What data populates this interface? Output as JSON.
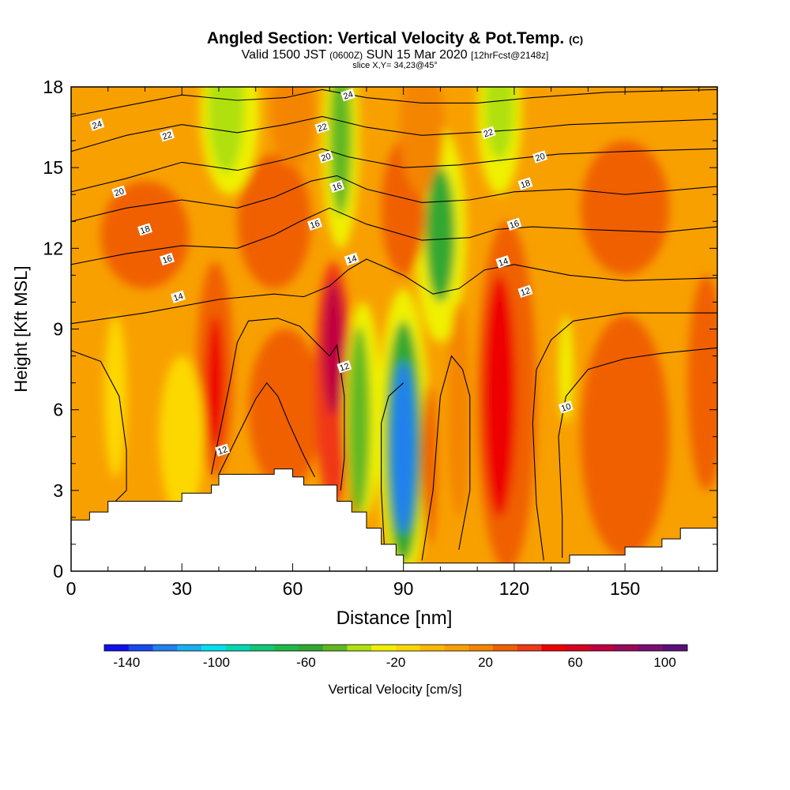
{
  "chart_data": {
    "type": "heatmap",
    "title": "Angled Section: Vertical Velocity & Pot.Temp.",
    "title_suffix": "(C)",
    "subtitle_line1_a": "Valid 1500 JST",
    "subtitle_line1_b": "(0600Z)",
    "subtitle_line1_c": "SUN 15 Mar 2020",
    "subtitle_line1_d": "[12hrFcst@2148z]",
    "subtitle_line2": "slice X,Y= 34,23@45°",
    "xlabel": "Distance [nm]",
    "ylabel": "Height [Kft MSL]",
    "xlim": [
      0,
      175
    ],
    "ylim": [
      0,
      18
    ],
    "x_ticks": [
      0,
      30,
      60,
      90,
      120,
      150
    ],
    "x_tick_labels": [
      "0",
      "30",
      "60",
      "90",
      "120",
      "150"
    ],
    "y_ticks": [
      0,
      3,
      6,
      9,
      12,
      15,
      18
    ],
    "y_tick_labels": [
      "0",
      "3",
      "6",
      "9",
      "12",
      "15",
      "18"
    ],
    "colorbar": {
      "label": "Vertical Velocity [cm/s]",
      "tick_values": [
        -140,
        -100,
        -60,
        -20,
        20,
        60,
        100
      ],
      "tick_labels": [
        "-140",
        "-100",
        "-60",
        "-20",
        "20",
        "60",
        "100"
      ],
      "colors": [
        "#1010ee",
        "#1848f0",
        "#2080ef",
        "#18b0f0",
        "#00e0ee",
        "#00d8b0",
        "#10c878",
        "#20b848",
        "#30a830",
        "#60b820",
        "#b0e010",
        "#f0f000",
        "#fdd800",
        "#fbb900",
        "#f8a000",
        "#f48500",
        "#f06000",
        "#f03818",
        "#ee0000",
        "#d80020",
        "#c00040",
        "#9a0a5a",
        "#781070",
        "#5a1078"
      ]
    },
    "terrain": [
      [
        0,
        1.9
      ],
      [
        5,
        2.2
      ],
      [
        10,
        2.6
      ],
      [
        30,
        2.9
      ],
      [
        38,
        3.2
      ],
      [
        40,
        3.6
      ],
      [
        50,
        3.6
      ],
      [
        55,
        3.8
      ],
      [
        58,
        3.8
      ],
      [
        60,
        3.5
      ],
      [
        63,
        3.2
      ],
      [
        70,
        3.2
      ],
      [
        72,
        2.6
      ],
      [
        76,
        2.2
      ],
      [
        80,
        1.6
      ],
      [
        84,
        1.0
      ],
      [
        88,
        0.6
      ],
      [
        90,
        0.3
      ],
      [
        130,
        0.3
      ],
      [
        135,
        0.6
      ],
      [
        145,
        0.6
      ],
      [
        150,
        0.9
      ],
      [
        160,
        1.2
      ],
      [
        165,
        1.6
      ],
      [
        175,
        1.6
      ]
    ],
    "theta_contours": [
      {
        "label": "10",
        "points": [
          [
            133,
            0.5
          ],
          [
            133,
            2
          ],
          [
            132,
            5
          ],
          [
            134,
            6.5
          ],
          [
            140,
            7.5
          ],
          [
            150,
            7.9
          ],
          [
            160,
            8.1
          ],
          [
            175,
            8.3
          ]
        ]
      },
      {
        "label": "12",
        "points": [
          [
            0,
            8.2
          ],
          [
            8,
            7.8
          ],
          [
            13,
            6.5
          ],
          [
            15,
            4.5
          ],
          [
            15,
            3.0
          ],
          [
            12,
            2.6
          ]
        ]
      },
      {
        "label": "12",
        "points": [
          [
            38,
            3.6
          ],
          [
            40,
            5
          ],
          [
            43,
            7
          ],
          [
            45,
            8.5
          ],
          [
            48,
            9.3
          ],
          [
            56,
            9.4
          ],
          [
            62,
            9.1
          ],
          [
            67,
            8.4
          ],
          [
            70,
            8.0
          ],
          [
            72,
            8.4
          ],
          [
            74,
            6.5
          ],
          [
            74,
            4.2
          ],
          [
            73,
            3
          ]
        ]
      },
      {
        "label": "12",
        "points": [
          [
            40,
            3.6
          ],
          [
            45,
            5
          ],
          [
            50,
            6.4
          ],
          [
            53,
            7
          ],
          [
            56,
            6.5
          ],
          [
            59,
            5.5
          ],
          [
            63,
            4.3
          ],
          [
            66,
            3.5
          ]
        ]
      },
      {
        "label": "12",
        "points": [
          [
            85,
            0.5
          ],
          [
            84,
            3
          ],
          [
            84,
            5.5
          ],
          [
            86,
            6.5
          ],
          [
            90,
            7
          ]
        ]
      },
      {
        "label": "12",
        "points": [
          [
            95,
            0.4
          ],
          [
            98,
            3
          ],
          [
            100,
            6.5
          ],
          [
            103,
            8
          ],
          [
            106,
            7.5
          ],
          [
            108,
            6.5
          ],
          [
            108,
            3
          ],
          [
            105,
            0.8
          ]
        ]
      },
      {
        "label": "12",
        "points": [
          [
            128,
            0.4
          ],
          [
            126,
            2.5
          ],
          [
            125,
            5.5
          ],
          [
            126,
            7.5
          ],
          [
            130,
            8.6
          ],
          [
            136,
            9.3
          ],
          [
            150,
            9.6
          ],
          [
            175,
            9.6
          ]
        ]
      },
      {
        "label": "14",
        "points": [
          [
            0,
            9.2
          ],
          [
            20,
            9.6
          ],
          [
            40,
            10.1
          ],
          [
            55,
            10.3
          ],
          [
            63,
            10.2
          ],
          [
            70,
            10.6
          ],
          [
            75,
            11.2
          ],
          [
            80,
            11.6
          ],
          [
            90,
            11.0
          ],
          [
            98,
            10.3
          ],
          [
            105,
            10.5
          ],
          [
            112,
            11.2
          ],
          [
            120,
            11.4
          ],
          [
            135,
            11.0
          ],
          [
            150,
            10.8
          ],
          [
            175,
            10.9
          ]
        ]
      },
      {
        "label": "16",
        "points": [
          [
            0,
            11.4
          ],
          [
            15,
            11.8
          ],
          [
            30,
            12.1
          ],
          [
            45,
            12.0
          ],
          [
            55,
            12.5
          ],
          [
            62,
            13.0
          ],
          [
            70,
            13.5
          ],
          [
            80,
            12.9
          ],
          [
            95,
            12.3
          ],
          [
            108,
            12.4
          ],
          [
            115,
            12.7
          ],
          [
            125,
            12.8
          ],
          [
            140,
            12.7
          ],
          [
            160,
            12.6
          ],
          [
            175,
            12.8
          ]
        ]
      },
      {
        "label": "18",
        "points": [
          [
            0,
            13.0
          ],
          [
            15,
            13.5
          ],
          [
            30,
            13.8
          ],
          [
            45,
            13.5
          ],
          [
            55,
            13.9
          ],
          [
            65,
            14.5
          ],
          [
            72,
            14.7
          ],
          [
            80,
            14.2
          ],
          [
            95,
            13.7
          ],
          [
            108,
            13.8
          ],
          [
            120,
            14.1
          ],
          [
            135,
            14.2
          ],
          [
            150,
            14.0
          ],
          [
            175,
            14.3
          ]
        ]
      },
      {
        "label": "20",
        "points": [
          [
            0,
            14.1
          ],
          [
            15,
            14.6
          ],
          [
            30,
            15.2
          ],
          [
            45,
            14.9
          ],
          [
            58,
            15.3
          ],
          [
            68,
            15.7
          ],
          [
            75,
            15.4
          ],
          [
            90,
            15.0
          ],
          [
            105,
            15.1
          ],
          [
            118,
            15.3
          ],
          [
            132,
            15.5
          ],
          [
            150,
            15.6
          ],
          [
            175,
            15.7
          ]
        ]
      },
      {
        "label": "22",
        "points": [
          [
            0,
            15.6
          ],
          [
            15,
            16.2
          ],
          [
            30,
            16.6
          ],
          [
            45,
            16.3
          ],
          [
            58,
            16.6
          ],
          [
            68,
            16.9
          ],
          [
            80,
            16.5
          ],
          [
            95,
            16.2
          ],
          [
            108,
            16.3
          ],
          [
            120,
            16.4
          ],
          [
            135,
            16.6
          ],
          [
            155,
            16.7
          ],
          [
            175,
            16.8
          ]
        ]
      },
      {
        "label": "24",
        "points": [
          [
            0,
            16.9
          ],
          [
            15,
            17.3
          ],
          [
            30,
            17.7
          ],
          [
            45,
            17.5
          ],
          [
            58,
            17.6
          ],
          [
            68,
            17.9
          ],
          [
            80,
            17.6
          ],
          [
            95,
            17.4
          ],
          [
            110,
            17.4
          ],
          [
            125,
            17.6
          ],
          [
            145,
            17.8
          ],
          [
            175,
            17.9
          ]
        ]
      }
    ],
    "contour_labels": [
      {
        "text": "24",
        "x": 7,
        "y": 16.6
      },
      {
        "text": "22",
        "x": 26,
        "y": 16.2
      },
      {
        "text": "20",
        "x": 13,
        "y": 14.1
      },
      {
        "text": "18",
        "x": 20,
        "y": 12.7
      },
      {
        "text": "16",
        "x": 26,
        "y": 11.6
      },
      {
        "text": "14",
        "x": 29,
        "y": 10.2
      },
      {
        "text": "12",
        "x": 41,
        "y": 4.5
      },
      {
        "text": "12",
        "x": 74,
        "y": 7.6
      },
      {
        "text": "24",
        "x": 75,
        "y": 17.7
      },
      {
        "text": "22",
        "x": 68,
        "y": 16.5
      },
      {
        "text": "20",
        "x": 69,
        "y": 15.4
      },
      {
        "text": "16",
        "x": 72,
        "y": 14.3
      },
      {
        "text": "16",
        "x": 66,
        "y": 12.9
      },
      {
        "text": "14",
        "x": 76,
        "y": 11.6
      },
      {
        "text": "22",
        "x": 113,
        "y": 16.3
      },
      {
        "text": "20",
        "x": 127,
        "y": 15.4
      },
      {
        "text": "18",
        "x": 123,
        "y": 14.4
      },
      {
        "text": "16",
        "x": 120,
        "y": 12.9
      },
      {
        "text": "14",
        "x": 117,
        "y": 11.5
      },
      {
        "text": "12",
        "x": 123,
        "y": 10.4
      },
      {
        "text": "10",
        "x": 134,
        "y": 6.1
      }
    ],
    "velocity_features": [
      {
        "x": 90,
        "y": 4.6,
        "rx": 3.2,
        "ry": 3.2,
        "value": -120
      },
      {
        "x": 90,
        "y": 4.8,
        "rx": 5,
        "ry": 4.5,
        "value": -60
      },
      {
        "x": 90,
        "y": 5.0,
        "rx": 7,
        "ry": 5.5,
        "value": -30
      },
      {
        "x": 78,
        "y": 5.6,
        "rx": 3,
        "ry": 3.5,
        "value": -50
      },
      {
        "x": 79,
        "y": 6,
        "rx": 5,
        "ry": 4,
        "value": -25
      },
      {
        "x": 71,
        "y": 8.3,
        "rx": 3,
        "ry": 2.5,
        "value": 70
      },
      {
        "x": 71,
        "y": 7.0,
        "rx": 5,
        "ry": 4.5,
        "value": 40
      },
      {
        "x": 39,
        "y": 7.0,
        "rx": 2.5,
        "ry": 2.5,
        "value": 50
      },
      {
        "x": 39,
        "y": 7.5,
        "rx": 5,
        "ry": 4,
        "value": 25
      },
      {
        "x": 116,
        "y": 6.5,
        "rx": 4.5,
        "ry": 4.5,
        "value": 50
      },
      {
        "x": 118,
        "y": 6.5,
        "rx": 8,
        "ry": 6.5,
        "value": 25
      },
      {
        "x": 97,
        "y": 4,
        "rx": 2,
        "ry": 3,
        "value": 30
      },
      {
        "x": 100,
        "y": 12.5,
        "rx": 4,
        "ry": 2.5,
        "value": -60
      },
      {
        "x": 100,
        "y": 12.5,
        "rx": 7,
        "ry": 4,
        "value": -30
      },
      {
        "x": 73,
        "y": 16.2,
        "rx": 3,
        "ry": 3,
        "value": -50
      },
      {
        "x": 73,
        "y": 16,
        "rx": 5,
        "ry": 4,
        "value": -30
      },
      {
        "x": 42,
        "y": 17.3,
        "rx": 5,
        "ry": 2.5,
        "value": -40
      },
      {
        "x": 43,
        "y": 17,
        "rx": 8,
        "ry": 3,
        "value": -25
      },
      {
        "x": 116,
        "y": 17.3,
        "rx": 4,
        "ry": 2,
        "value": -40
      },
      {
        "x": 116,
        "y": 17,
        "rx": 6,
        "ry": 3,
        "value": -25
      },
      {
        "x": 12,
        "y": 6.5,
        "rx": 3,
        "ry": 3,
        "value": -20
      },
      {
        "x": 134,
        "y": 7.5,
        "rx": 2,
        "ry": 2,
        "value": -25
      },
      {
        "x": 90,
        "y": 13.5,
        "rx": 6,
        "ry": 2.5,
        "value": 25
      },
      {
        "x": 150,
        "y": 13.5,
        "rx": 12,
        "ry": 2.5,
        "value": 25
      },
      {
        "x": 20,
        "y": 12.5,
        "rx": 12,
        "ry": 2,
        "value": 25
      },
      {
        "x": 55,
        "y": 13,
        "rx": 10,
        "ry": 2.5,
        "value": 25
      },
      {
        "x": 150,
        "y": 5,
        "rx": 12,
        "ry": 4.5,
        "value": 25
      },
      {
        "x": 58,
        "y": 6,
        "rx": 10,
        "ry": 3,
        "value": 25
      },
      {
        "x": 172,
        "y": 7,
        "rx": 5,
        "ry": 4,
        "value": 25
      },
      {
        "x": 105,
        "y": 6,
        "rx": 3,
        "ry": 4,
        "value": 20
      },
      {
        "x": 30,
        "y": 5,
        "rx": 6,
        "ry": 3,
        "value": -20
      },
      {
        "x": 95,
        "y": 16.5,
        "rx": 6,
        "ry": 2.5,
        "value": 22
      },
      {
        "x": 60,
        "y": 17,
        "rx": 6,
        "ry": 2,
        "value": 22
      }
    ]
  }
}
